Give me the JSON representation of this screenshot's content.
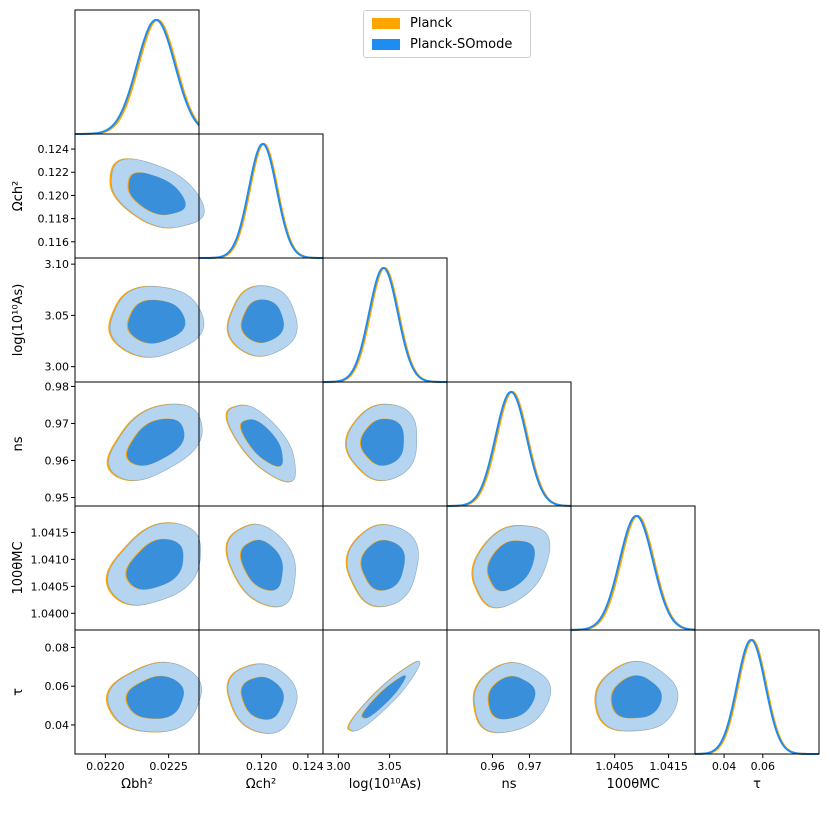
{
  "chart_data": {
    "type": "triangle-corner",
    "series": [
      {
        "name": "Planck",
        "color": "#ffa500"
      },
      {
        "name": "Planck-SOmode",
        "color": "#1e8cf0"
      }
    ],
    "params": [
      {
        "id": "omegabh2",
        "label": "Ωbh²",
        "range": [
          0.02176,
          0.02274
        ],
        "mean": 0.0224,
        "sigma": 0.00015,
        "ticks": [
          {
            "v": 0.022,
            "t": "0.0220"
          },
          {
            "v": 0.0225,
            "t": "0.0225"
          }
        ]
      },
      {
        "id": "omegach2",
        "label": "Ωch²",
        "range": [
          0.1146,
          0.1253
        ],
        "mean": 0.1201,
        "sigma": 0.0012,
        "ticks": [
          {
            "v": 0.12,
            "t": "0.120"
          },
          {
            "v": 0.124,
            "t": "0.124"
          }
        ],
        "yticks": [
          {
            "v": 0.116,
            "t": "0.116"
          },
          {
            "v": 0.118,
            "t": "0.118"
          },
          {
            "v": 0.12,
            "t": "0.120"
          },
          {
            "v": 0.122,
            "t": "0.122"
          },
          {
            "v": 0.124,
            "t": "0.124"
          }
        ]
      },
      {
        "id": "logA",
        "label": "log(10¹⁰As)",
        "range": [
          2.985,
          3.106
        ],
        "mean": 3.044,
        "sigma": 0.014,
        "ticks": [
          {
            "v": 3.0,
            "t": "3.00"
          },
          {
            "v": 3.05,
            "t": "3.05"
          }
        ],
        "yticks": [
          {
            "v": 3.0,
            "t": "3.00"
          },
          {
            "v": 3.05,
            "t": "3.05"
          },
          {
            "v": 3.1,
            "t": "3.10"
          }
        ]
      },
      {
        "id": "ns",
        "label": "ns",
        "range": [
          0.9477,
          0.9812
        ],
        "mean": 0.965,
        "sigma": 0.0042,
        "ticks": [
          {
            "v": 0.96,
            "t": "0.96"
          },
          {
            "v": 0.97,
            "t": "0.97"
          }
        ],
        "yticks": [
          {
            "v": 0.95,
            "t": "0.95"
          },
          {
            "v": 0.96,
            "t": "0.96"
          },
          {
            "v": 0.97,
            "t": "0.97"
          },
          {
            "v": 0.98,
            "t": "0.98"
          }
        ]
      },
      {
        "id": "theta",
        "label": "100θMC",
        "range": [
          1.03969,
          1.04199
        ],
        "mean": 1.0409,
        "sigma": 0.00031,
        "ticks": [
          {
            "v": 1.0405,
            "t": "1.0405"
          },
          {
            "v": 1.0415,
            "t": "1.0415"
          }
        ],
        "yticks": [
          {
            "v": 1.04,
            "t": "1.0400"
          },
          {
            "v": 1.0405,
            "t": "1.0405"
          },
          {
            "v": 1.041,
            "t": "1.0410"
          },
          {
            "v": 1.0415,
            "t": "1.0415"
          }
        ]
      },
      {
        "id": "tau",
        "label": "τ",
        "range": [
          0.025,
          0.089
        ],
        "mean": 0.054,
        "sigma": 0.0073,
        "ticks": [
          {
            "v": 0.04,
            "t": "0.04"
          },
          {
            "v": 0.06,
            "t": "0.06"
          }
        ],
        "yticks": [
          {
            "v": 0.04,
            "t": "0.04"
          },
          {
            "v": 0.06,
            "t": "0.06"
          },
          {
            "v": 0.08,
            "t": "0.08"
          }
        ]
      }
    ],
    "correlations": [
      {
        "pair": [
          "omegach2",
          "omegabh2"
        ],
        "rho": -0.45
      },
      {
        "pair": [
          "logA",
          "omegabh2"
        ],
        "rho": 0.05
      },
      {
        "pair": [
          "logA",
          "omegach2"
        ],
        "rho": 0.03
      },
      {
        "pair": [
          "ns",
          "omegabh2"
        ],
        "rho": 0.45
      },
      {
        "pair": [
          "ns",
          "omegach2"
        ],
        "rho": -0.68
      },
      {
        "pair": [
          "ns",
          "logA"
        ],
        "rho": 0.05
      },
      {
        "pair": [
          "theta",
          "omegabh2"
        ],
        "rho": 0.35
      },
      {
        "pair": [
          "theta",
          "omegach2"
        ],
        "rho": -0.3
      },
      {
        "pair": [
          "theta",
          "logA"
        ],
        "rho": 0.05
      },
      {
        "pair": [
          "theta",
          "ns"
        ],
        "rho": 0.32
      },
      {
        "pair": [
          "tau",
          "omegabh2"
        ],
        "rho": 0.12
      },
      {
        "pair": [
          "tau",
          "omegach2"
        ],
        "rho": -0.12
      },
      {
        "pair": [
          "tau",
          "logA"
        ],
        "rho": 0.93
      },
      {
        "pair": [
          "tau",
          "ns"
        ],
        "rho": 0.15
      },
      {
        "pair": [
          "tau",
          "theta"
        ],
        "rho": 0.05
      }
    ],
    "contour_levels": [
      "68%",
      "95%"
    ],
    "inner_color": "#3a8fdb",
    "outer_color": "#b4d4ef"
  }
}
